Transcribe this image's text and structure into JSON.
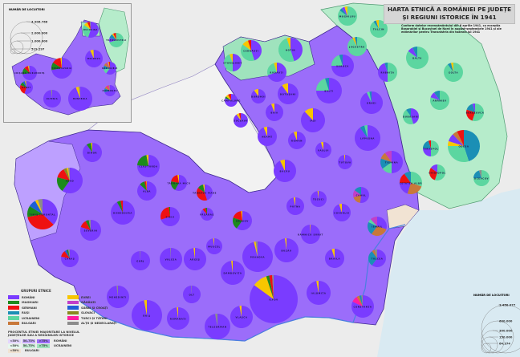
{
  "title": {
    "line1": "HARTA ETNICĂ A ROMÂNIEI PE JUDEȚE",
    "line2": "ȘI REGIUNI ISTORICE ÎN 1941"
  },
  "subtitle": "Conform datelor recensământului din 6 aprilie 1941, cu excepția Basarabiei și Bucovinei de Nord în august-septembrie 1941 și ale estimărilor pentru Transnistria din toamna lui 1941",
  "colors": {
    "background": "#ececec",
    "romania_fill": "#9b6dfa",
    "romania_light": "#bda0ff",
    "transnistria_fill": "#b6eccb",
    "sea": "#d9eaf2",
    "border": "#5a3fb0"
  },
  "groups": [
    {
      "key": "ro",
      "label": "ROMÂNI",
      "color": "#7a3cff"
    },
    {
      "key": "hu",
      "label": "MAGHIARI",
      "color": "#1c8a1c"
    },
    {
      "key": "de",
      "label": "GERMANI",
      "color": "#ee1111"
    },
    {
      "key": "ru",
      "label": "RUȘI",
      "color": "#1b8fb5"
    },
    {
      "key": "ua",
      "label": "UCRAINENI",
      "color": "#5cd6a0"
    },
    {
      "key": "bg",
      "label": "BULGARI",
      "color": "#c8783a"
    },
    {
      "key": "ev",
      "label": "EVREI",
      "color": "#f7c600"
    },
    {
      "key": "gg",
      "label": "GĂGĂUZI",
      "color": "#c13fc8"
    },
    {
      "key": "sr",
      "label": "SÂRBI ȘI CROAȚI",
      "color": "#1f5fd6"
    },
    {
      "key": "sk",
      "label": "SLOVACI",
      "color": "#8a8a1e"
    },
    {
      "key": "tt",
      "label": "TURCI ȘI TĂTARI",
      "color": "#ff1e9e"
    },
    {
      "key": "ot",
      "label": "ALȚII ȘI NEDECLARAȚI",
      "color": "#8c8c8c"
    }
  ],
  "legend": {
    "groups_title": "GRUPURI ETNICE",
    "percent_title": "PROCENTUL ETNIEI MAJORITARE LA NIVELUL JUDEȚELOR SAU A REGIUNILOR ISTORICE",
    "percent_rows": [
      {
        "group": "ROMÂNI",
        "bins": [
          "<50%",
          "50–75%",
          ">75%"
        ],
        "colors": [
          "#e3d6ff",
          "#c7acff",
          "#9b6dfa"
        ]
      },
      {
        "group": "UCRAINENI",
        "bins": [
          "<50%",
          "50–75%",
          ">75%"
        ],
        "colors": [
          "#e6f8ee",
          "#c6efd7",
          "#9fe3bd"
        ]
      },
      {
        "group": "BULGARI",
        "bins": [
          "<50%"
        ],
        "colors": [
          "#f1e3d3"
        ]
      }
    ]
  },
  "size_legend_inset": {
    "title": "NUMĂR DE LOCUITORI",
    "values": [
      "4.906.766",
      "2.000.000",
      "1.000.000",
      "519.297"
    ]
  },
  "size_legend_main": {
    "title": "NUMĂR DE LOCUITORI",
    "values": [
      "1.458.077",
      "600.000",
      "300.000",
      "150.000",
      "64.374"
    ]
  },
  "inset_regions": [
    {
      "name": "BUCOVINA",
      "shares": {
        "ro": 0.55,
        "ua": 0.3,
        "ev": 0.08,
        "de": 0.05,
        "ot": 0.02
      }
    },
    {
      "name": "TRANSNISTRIA",
      "shares": {
        "ua": 0.7,
        "ro": 0.1,
        "ru": 0.1,
        "ev": 0.03,
        "de": 0.05,
        "bg": 0.02
      }
    },
    {
      "name": "MOLDOVA",
      "shares": {
        "ro": 0.93,
        "ev": 0.06,
        "ot": 0.01
      }
    },
    {
      "name": "BASARABIA",
      "shares": {
        "ro": 0.6,
        "ua": 0.12,
        "ru": 0.1,
        "bg": 0.08,
        "gg": 0.04,
        "ev": 0.03,
        "de": 0.03
      }
    },
    {
      "name": "CRIȘANA-MARAMUREȘ",
      "shares": {
        "ro": 0.72,
        "hu": 0.15,
        "de": 0.09,
        "ev": 0.02,
        "ot": 0.02
      }
    },
    {
      "name": "TRANSILVANIA",
      "shares": {
        "ro": 0.72,
        "hu": 0.12,
        "de": 0.14,
        "ev": 0.02
      }
    },
    {
      "name": "BANAT",
      "shares": {
        "ro": 0.55,
        "de": 0.26,
        "hu": 0.09,
        "sr": 0.06,
        "ev": 0.02,
        "ot": 0.02
      }
    },
    {
      "name": "OLTENIA",
      "shares": {
        "ro": 0.98,
        "ot": 0.02
      }
    },
    {
      "name": "MUNTENIA",
      "shares": {
        "ro": 0.94,
        "ev": 0.04,
        "ot": 0.02
      }
    },
    {
      "name": "DOBROGEA",
      "shares": {
        "ro": 0.7,
        "ru": 0.12,
        "bg": 0.08,
        "tt": 0.06,
        "ot": 0.04
      }
    }
  ],
  "counties": [
    {
      "name": "BIHOR",
      "shares": {
        "ro": 0.9,
        "hu": 0.08,
        "ev": 0.02
      }
    },
    {
      "name": "CLUJ-TURDA",
      "shares": {
        "ro": 0.76,
        "hu": 0.21,
        "ev": 0.03
      }
    },
    {
      "name": "ARAD",
      "shares": {
        "ro": 0.6,
        "hu": 0.19,
        "de": 0.13,
        "sk": 0.04,
        "ev": 0.02,
        "ot": 0.02
      }
    },
    {
      "name": "TIMIȘ-TORONTAL",
      "shares": {
        "ro": 0.37,
        "de": 0.35,
        "hu": 0.12,
        "sr": 0.08,
        "ev": 0.03,
        "ot": 0.05
      }
    },
    {
      "name": "ALBA",
      "shares": {
        "ro": 0.87,
        "hu": 0.09,
        "de": 0.03,
        "ev": 0.01
      }
    },
    {
      "name": "TÂRNAVA MICĂ",
      "shares": {
        "ro": 0.58,
        "hu": 0.2,
        "de": 0.19,
        "ev": 0.03
      }
    },
    {
      "name": "TÂRNAVA MARE",
      "shares": {
        "ro": 0.45,
        "de": 0.4,
        "hu": 0.12,
        "ev": 0.03
      }
    },
    {
      "name": "HUNEDOARA",
      "shares": {
        "ro": 0.92,
        "hu": 0.05,
        "de": 0.03
      }
    },
    {
      "name": "SEVERIN",
      "shares": {
        "ro": 0.8,
        "de": 0.12,
        "hu": 0.05,
        "ot": 0.03
      }
    },
    {
      "name": "CARAȘ",
      "shares": {
        "ro": 0.78,
        "de": 0.12,
        "sr": 0.04,
        "hu": 0.03,
        "ot": 0.03
      }
    },
    {
      "name": "SIBIU",
      "shares": {
        "ro": 0.7,
        "de": 0.28,
        "hu": 0.02
      }
    },
    {
      "name": "FĂGĂRAȘ",
      "shares": {
        "ro": 0.88,
        "de": 0.08,
        "hu": 0.04
      }
    },
    {
      "name": "BRAȘOV",
      "shares": {
        "ro": 0.6,
        "hu": 0.2,
        "de": 0.18,
        "ev": 0.02
      }
    },
    {
      "name": "MEHEDINȚI",
      "shares": {
        "ro": 0.98,
        "ot": 0.02
      }
    },
    {
      "name": "GORJ",
      "shares": {
        "ro": 0.99,
        "ot": 0.01
      }
    },
    {
      "name": "VÂLCEA",
      "shares": {
        "ro": 0.99,
        "ot": 0.01
      }
    },
    {
      "name": "ARGEȘ",
      "shares": {
        "ro": 0.98,
        "ev": 0.02
      }
    },
    {
      "name": "MUSCEL",
      "shares": {
        "ro": 0.98,
        "ev": 0.02
      }
    },
    {
      "name": "DOLJ",
      "shares": {
        "ro": 0.97,
        "ev": 0.03
      }
    },
    {
      "name": "ROMANAȚI",
      "shares": {
        "ro": 0.98,
        "ev": 0.02
      }
    },
    {
      "name": "OLT",
      "shares": {
        "ro": 0.99,
        "ot": 0.01
      }
    },
    {
      "name": "TELEORMAN",
      "shares": {
        "ro": 0.97,
        "ot": 0.03
      }
    },
    {
      "name": "DÂMBOVIȚA",
      "shares": {
        "ro": 0.98,
        "ev": 0.02
      }
    },
    {
      "name": "VLAȘCA",
      "shares": {
        "ro": 0.97,
        "ev": 0.03
      }
    },
    {
      "name": "PRAHOVA",
      "shares": {
        "ro": 0.96,
        "ev": 0.02,
        "ot": 0.02
      }
    },
    {
      "name": "BUZĂU",
      "shares": {
        "ro": 0.98,
        "ev": 0.02
      }
    },
    {
      "name": "ILFOV",
      "shares": {
        "ro": 0.85,
        "ev": 0.1,
        "hu": 0.02,
        "de": 0.02,
        "ot": 0.01
      }
    },
    {
      "name": "IALOMIȚA",
      "shares": {
        "ro": 0.97,
        "ev": 0.03
      }
    },
    {
      "name": "RÂMNICU SĂRAT",
      "shares": {
        "ro": 0.99,
        "ev": 0.01
      }
    },
    {
      "name": "BRĂILA",
      "shares": {
        "ro": 0.95,
        "ev": 0.05
      }
    },
    {
      "name": "CONSTANȚA",
      "shares": {
        "ro": 0.82,
        "tt": 0.09,
        "bg": 0.04,
        "ru": 0.03,
        "ot": 0.02
      }
    },
    {
      "name": "TULCEA",
      "shares": {
        "ro": 0.6,
        "ru": 0.3,
        "bg": 0.05,
        "ot": 0.05
      }
    },
    {
      "name": "ISMAIL",
      "shares": {
        "ro": 0.3,
        "bg": 0.3,
        "ru": 0.22,
        "ua": 0.06,
        "gg": 0.12
      }
    },
    {
      "name": "CAHUL",
      "shares": {
        "ro": 0.52,
        "bg": 0.18,
        "gg": 0.15,
        "ru": 0.15
      }
    },
    {
      "name": "COVURLUI",
      "shares": {
        "ro": 0.95,
        "ev": 0.05
      }
    },
    {
      "name": "PUTNA",
      "shares": {
        "ro": 0.97,
        "ev": 0.03
      }
    },
    {
      "name": "TECUCI",
      "shares": {
        "ro": 0.98,
        "ev": 0.02
      }
    },
    {
      "name": "BACĂU",
      "shares": {
        "ro": 0.93,
        "ev": 0.07
      }
    },
    {
      "name": "TUTOVA",
      "shares": {
        "ro": 0.98,
        "ev": 0.02
      }
    },
    {
      "name": "VASLUI",
      "shares": {
        "ro": 0.95,
        "ev": 0.05
      }
    },
    {
      "name": "ROMAN",
      "shares": {
        "ro": 0.94,
        "ev": 0.06
      }
    },
    {
      "name": "NEAMȚ",
      "shares": {
        "ro": 0.94,
        "ev": 0.06
      }
    },
    {
      "name": "IAȘI",
      "shares": {
        "ro": 0.88,
        "ev": 0.12
      }
    },
    {
      "name": "BAIA",
      "shares": {
        "ro": 0.94,
        "ev": 0.06
      }
    },
    {
      "name": "BOTOȘANI",
      "shares": {
        "ro": 0.9,
        "ev": 0.1
      }
    },
    {
      "name": "DOROHOI",
      "shares": {
        "ro": 0.9,
        "ev": 0.1
      }
    },
    {
      "name": "CÂMPULUNG",
      "shares": {
        "ro": 0.8,
        "hu": 0.05,
        "ev": 0.07,
        "de": 0.08
      }
    },
    {
      "name": "SUCEAVA",
      "shares": {
        "ro": 0.9,
        "ev": 0.06,
        "de": 0.04
      }
    },
    {
      "name": "RĂDĂUȚI",
      "shares": {
        "ro": 0.7,
        "ua": 0.25,
        "ev": 0.05
      }
    },
    {
      "name": "STOROJINEȚ",
      "shares": {
        "ro": 0.5,
        "ua": 0.44,
        "ev": 0.06
      }
    },
    {
      "name": "CERNĂUȚI",
      "shares": {
        "ro": 0.45,
        "ua": 0.4,
        "ev": 0.1,
        "de": 0.05
      }
    },
    {
      "name": "HOTIN",
      "shares": {
        "ro": 0.45,
        "ua": 0.5,
        "ev": 0.05
      }
    },
    {
      "name": "SOROCA",
      "shares": {
        "ro": 0.75,
        "ua": 0.2,
        "ru": 0.05
      }
    },
    {
      "name": "BĂLȚI",
      "shares": {
        "ro": 0.75,
        "ua": 0.2,
        "ru": 0.05
      }
    },
    {
      "name": "ORHEI",
      "shares": {
        "ro": 0.93,
        "ua": 0.04,
        "ru": 0.03
      }
    },
    {
      "name": "LĂPUȘNA",
      "shares": {
        "ro": 0.9,
        "ru": 0.06,
        "ua": 0.04
      }
    },
    {
      "name": "TIGHINA",
      "shares": {
        "ro": 0.5,
        "ua": 0.15,
        "ru": 0.15,
        "bg": 0.1,
        "gg": 0.1
      }
    },
    {
      "name": "CETATEA ALBĂ",
      "shares": {
        "ua": 0.3,
        "bg": 0.25,
        "ro": 0.2,
        "de": 0.15,
        "ru": 0.1
      }
    },
    {
      "name": "MOGHILĂU",
      "shares": {
        "ua": 0.85,
        "ru": 0.05,
        "ro": 0.05,
        "ev": 0.05
      }
    },
    {
      "name": "TULCIN",
      "shares": {
        "ua": 0.9,
        "ru": 0.05,
        "ev": 0.05
      }
    },
    {
      "name": "JUGASTRU",
      "shares": {
        "ua": 0.92,
        "ev": 0.04,
        "ru": 0.04
      }
    },
    {
      "name": "BALTA",
      "shares": {
        "ua": 0.85,
        "ro": 0.08,
        "ru": 0.07
      }
    },
    {
      "name": "RÂBNIȚA",
      "shares": {
        "ua": 0.5,
        "ro": 0.45,
        "ru": 0.05
      }
    },
    {
      "name": "GOLTA",
      "shares": {
        "ua": 0.9,
        "ru": 0.06,
        "ev": 0.04
      }
    },
    {
      "name": "ANANIEV",
      "shares": {
        "ua": 0.8,
        "ro": 0.1,
        "ru": 0.1
      }
    },
    {
      "name": "DUBĂSARI",
      "shares": {
        "ro": 0.45,
        "ua": 0.45,
        "ru": 0.1
      }
    },
    {
      "name": "BEREZOVCA",
      "shares": {
        "ua": 0.55,
        "de": 0.25,
        "ru": 0.15,
        "ro": 0.05
      }
    },
    {
      "name": "TIRASPOL",
      "shares": {
        "ua": 0.5,
        "ro": 0.25,
        "ru": 0.2,
        "de": 0.05
      }
    },
    {
      "name": "ODESA",
      "shares": {
        "ru": 0.45,
        "ua": 0.3,
        "ev": 0.05,
        "ro": 0.08,
        "bg": 0.05,
        "de": 0.07
      }
    },
    {
      "name": "OVIDIOPOL",
      "shares": {
        "ua": 0.55,
        "de": 0.3,
        "ro": 0.15
      }
    },
    {
      "name": "OCEACOV",
      "shares": {
        "ua": 0.75,
        "ru": 0.2,
        "ot": 0.05
      }
    }
  ]
}
